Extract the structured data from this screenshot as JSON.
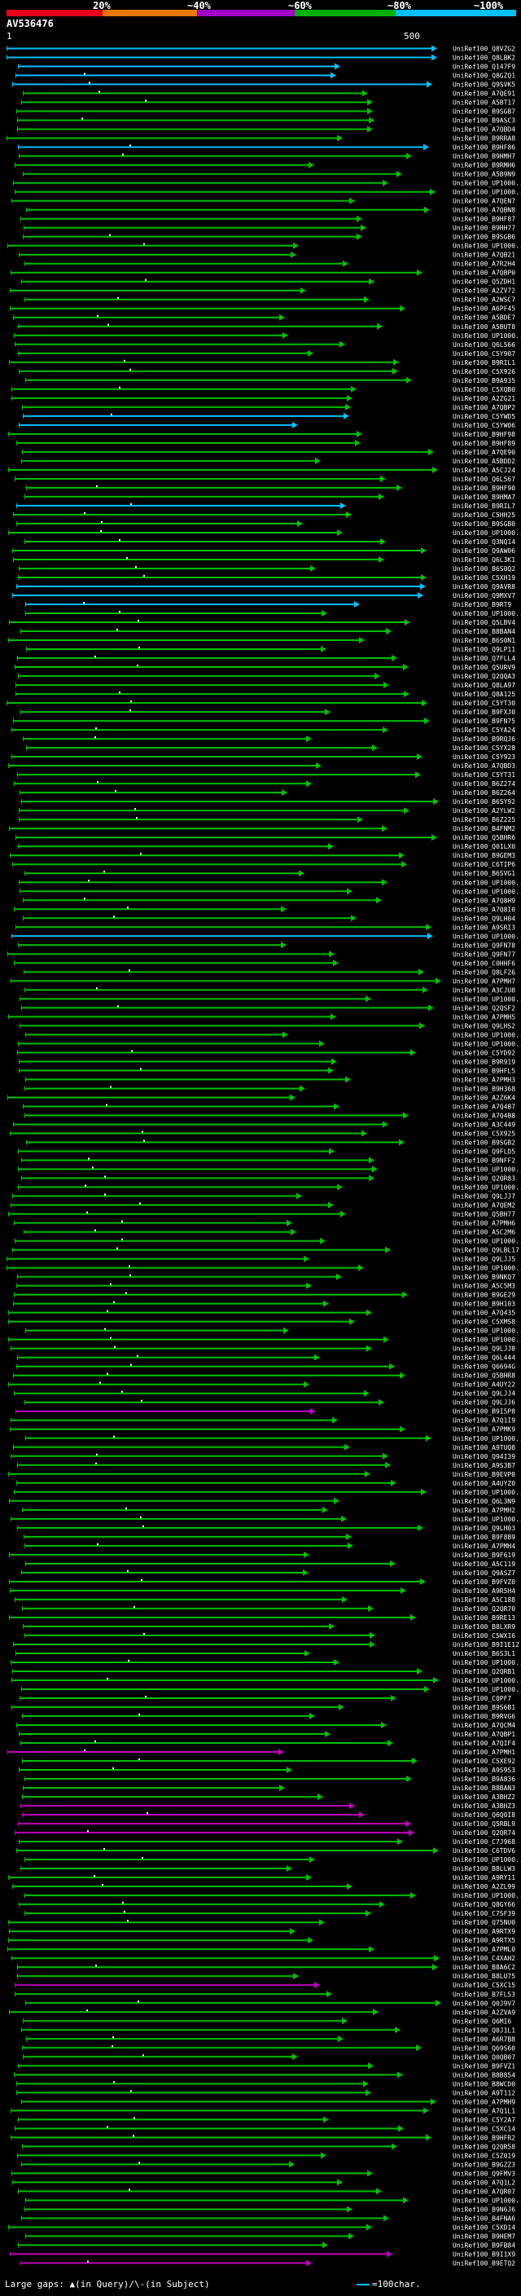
{
  "query_id": "AV536476",
  "scale": {
    "start": "1",
    "end": "500"
  },
  "identity_bar": [
    {
      "label": "20%",
      "color": "#e8001c"
    },
    {
      "label": "~40%",
      "color": "#e87800"
    },
    {
      "label": "~60%",
      "color": "#a000c8"
    },
    {
      "label": "~80%",
      "color": "#00b000"
    },
    {
      "label": "~100%",
      "color": "#00c0ff"
    }
  ],
  "footer": {
    "legend": "Large gaps: ▲(in Query)/\\-(in Subject)",
    "scale_key": "=100char."
  },
  "colors": {
    "cyan": "#00c0ff",
    "green": "#00c000",
    "magenta": "#c000c0",
    "background": "#000000"
  },
  "hits": [
    "UniRef100_Q8VZG2",
    "UniRef100_Q8LBK2",
    "UniRef100_Q147F9",
    "UniRef100_Q8GZQ1",
    "UniRef100_Q9SVK5",
    "UniRef100_A7QE91",
    "UniRef100_A5BT17",
    "UniRef100_B9SGB7",
    "UniRef100_B9ASC3",
    "UniRef100_A7QBD4",
    "UniRef100_B9RRA8",
    "UniRef100_B9HF86",
    "UniRef100_B9HMH7",
    "UniRef100_B9RMH6",
    "UniRef100_A5B9N9",
    "UniRef100_UP1000...",
    "UniRef100_UP1000...",
    "UniRef100_A7QEN7",
    "UniRef100_A7QBN8",
    "UniRef100_B9HF87",
    "UniRef100_B9HH77",
    "UniRef100_B9SGB6",
    "UniRef100_UP1000...",
    "UniRef100_A7QB21",
    "UniRef100_A7R2H4",
    "UniRef100_A7QBP0",
    "UniRef100_Q5ZDH1",
    "UniRef100_A2ZV72",
    "UniRef100_A2WSC7",
    "UniRef100_A6PF45",
    "UniRef100_A5BDE7",
    "UniRef100_A5BUT8",
    "UniRef100_UP1000...",
    "UniRef100_Q6L566",
    "UniRef100_C5Y907",
    "UniRef100_B9RIL1",
    "UniRef100_C5X926",
    "UniRef100_B9A935",
    "UniRef100_C5XQB0",
    "UniRef100_A2ZG21",
    "UniRef100_A7QBP2",
    "UniRef100_C5YWD5",
    "UniRef100_C5YW06",
    "UniRef100_B9HF98",
    "UniRef100_B9HF89",
    "UniRef100_A7QE90",
    "UniRef100_A5BDD2",
    "UniRef100_A5CJ24",
    "UniRef100_Q6L567",
    "UniRef100_B9HF90",
    "UniRef100_B9HMA7",
    "UniRef100_B9RIL7",
    "UniRef100_C5HH25",
    "UniRef100_B9SGB0",
    "UniRef100_UP1000...",
    "UniRef100_Q3NQ14",
    "UniRef100_Q9AW06",
    "UniRef100_Q6L3K1",
    "UniRef100_B6S0Q2",
    "UniRef100_C5XH19",
    "UniRef100_Q9AVR8",
    "UniRef100_Q9MXV7",
    "UniRef100_B9RT9",
    "UniRef100_UP1000...",
    "UniRef100_Q5LBV4",
    "UniRef100_B8BAN4",
    "UniRef100_B6S0N1",
    "UniRef100_Q9LP11",
    "UniRef100_Q7FLL4",
    "UniRef100_Q5URV9",
    "UniRef100_Q2QQA3",
    "UniRef100_Q8LA97",
    "UniRef100_Q8A125",
    "UniRef100_C5YT30",
    "UniRef100_B9FXJ0",
    "UniRef100_B9FN75",
    "UniRef100_C5YA24",
    "UniRef100_B9RQJ6",
    "UniRef100_C5YX28",
    "UniRef100_C5Y923",
    "UniRef100_A7QBD3",
    "UniRef100_C5YT31",
    "UniRef100_B6Z274",
    "UniRef100_B6Z264",
    "UniRef100_B6SY92",
    "UniRef100_A2YLW2",
    "UniRef100_B6Z225",
    "UniRef100_B4FNM2",
    "UniRef100_Q5BHR6",
    "UniRef100_Q01LX0",
    "UniRef100_B9GEM3",
    "UniRef100_C6TIP6",
    "UniRef100_B6SVG1",
    "UniRef100_UP1000...",
    "UniRef100_UP1000...",
    "UniRef100_A7Q8H9",
    "UniRef100_A7Q8I0",
    "UniRef100_Q9LH04",
    "UniRef100_A9SRI3",
    "UniRef100_UP1000...",
    "UniRef100_Q9FN78",
    "UniRef100_Q9FN77",
    "UniRef100_C0HHF6",
    "UniRef100_Q8LF26",
    "UniRef100_A7PMH7",
    "UniRef100_A3CJU8",
    "UniRef100_UP1000...",
    "UniRef100_Q2QSF2",
    "UniRef100_A7PMH5",
    "UniRef100_Q9LHS2",
    "UniRef100_UP1000...",
    "UniRef100_UP1000...",
    "UniRef100_C5YD92",
    "UniRef100_B9R919",
    "UniRef100_B9HFL5",
    "UniRef100_A7PMH3",
    "UniRef100_B9H368",
    "UniRef100_A2Z6K4",
    "UniRef100_A7Q4B7",
    "UniRef100_A7Q4B8",
    "UniRef100_A3C449",
    "UniRef100_C5X925",
    "UniRef100_B9SGB2",
    "UniRef100_Q9FLD5",
    "UniRef100_B9NFF2",
    "UniRef100_UP1000...",
    "UniRef100_Q2QR83",
    "UniRef100_UP1000...",
    "UniRef100_Q9LJJ7",
    "UniRef100_A7QEM2",
    "UniRef100_Q5BH77",
    "UniRef100_A7PMH6",
    "UniRef100_A5C2M6",
    "UniRef100_UP1000...",
    "UniRef100_Q9LBL17",
    "UniRef100_Q9LJJ5",
    "UniRef100_UP1000...",
    "UniRef100_B9NKQ7",
    "UniRef100_A5C5M3",
    "UniRef100_B9GE29",
    "UniRef100_B9H103",
    "UniRef100_A7Q435",
    "UniRef100_C5XMS8",
    "UniRef100_UP1000...",
    "UniRef100_UP1000...",
    "UniRef100_Q9LJJ8",
    "UniRef100_Q6L444",
    "UniRef100_Q6694G",
    "UniRef100_Q5BHR8",
    "UniRef100_A4UY22",
    "UniRef100_Q9LJJ4",
    "UniRef100_Q9LJJ6",
    "UniRef100_B9I5P8",
    "UniRef100_A7Q1I9",
    "UniRef100_A7PMK9",
    "UniRef100_UP1000...",
    "UniRef100_A9TUQ8",
    "UniRef100_Q94I39",
    "UniRef100_A9S3B7",
    "UniRef100_B9EVP8",
    "UniRef100_A4UYZ0",
    "UniRef100_UP1000...",
    "UniRef100_Q6L3N9",
    "UniRef100_A7PMH2",
    "UniRef100_UP1000...",
    "UniRef100_Q9LH03",
    "UniRef100_B9F8B9",
    "UniRef100_A7PMH4",
    "UniRef100_B9F619",
    "UniRef100_A5C119",
    "UniRef100_Q9ASZ7",
    "UniRef100_B9FVZ0",
    "UniRef100_A9R5H4",
    "UniRef100_A5C188",
    "UniRef100_Q2QR70",
    "UniRef100_B9RE13",
    "UniRef100_B8LXR9",
    "UniRef100_C5WX16",
    "UniRef100_B9I1E12",
    "UniRef100_B6S3L1",
    "UniRef100_UP1000...",
    "UniRef100_Q2QRB1",
    "UniRef100_UP1000...",
    "UniRef100_UP1000...",
    "UniRef100_C0PF7",
    "UniRef100_B9S6B1",
    "UniRef100_B9RVG6",
    "UniRef100_A7QCM4",
    "UniRef100_A7QBP1",
    "UniRef100_A7QIF4",
    "UniRef100_A7PMH1",
    "UniRef100_C5XE92",
    "UniRef100_A9S9S3",
    "UniRef100_B9A836",
    "UniRef100_B8BAN3",
    "UniRef100_A3BHZ2",
    "UniRef100_A3BHZ3",
    "UniRef100_Q6Q0I8",
    "UniRef100_Q5RBL9",
    "UniRef100_Q2QR74",
    "UniRef100_C7J968",
    "UniRef100_C6TDV6",
    "UniRef100_UP1000...",
    "UniRef100_B8LLW3",
    "UniRef100_A9RY11",
    "UniRef100_A2ZL99",
    "UniRef100_UP1000...",
    "UniRef100_Q8GY66",
    "UniRef100_C7SF39",
    "UniRef100_Q75NU0",
    "UniRef100_A9RTX9",
    "UniRef100_A9RTX5",
    "UniRef100_A7PML0",
    "UniRef100_C4XAH2",
    "UniRef100_B8A6C2",
    "UniRef100_B8LU75",
    "UniRef100_C5XC15",
    "UniRef100_B7FL53",
    "UniRef100_Q0J9V7",
    "UniRef100_A2ZVA9",
    "UniRef100_Q6MI6",
    "UniRef100_Q0J1L1",
    "UniRef100_A6R7B8",
    "UniRef100_Q69S60",
    "UniRef100_Q0QB07",
    "UniRef100_B9FVZ1",
    "UniRef100_B8B854",
    "UniRef100_B8WCD0",
    "UniRef100_A9T112",
    "UniRef100_A7PMH9",
    "UniRef100_A7Q1L1",
    "UniRef100_C5Y2A7",
    "UniRef100_C5XC14",
    "UniRef100_B9HFR2",
    "UniRef100_Q2QR58",
    "UniRef100_C5Z019",
    "UniRef100_B9GZZ3",
    "UniRef100_Q9FMV3",
    "UniRef100_A7Q1L2",
    "UniRef100_A7QR07",
    "UniRef100_UP1000...",
    "UniRef100_B9N6J6",
    "UniRef100_B4FNA6",
    "UniRef100_C5XD14",
    "UniRef100_B9HEM7",
    "UniRef100_B9FB84",
    "UniRef100_B9I1X9",
    "UniRef100_B9ETQ2"
  ]
}
